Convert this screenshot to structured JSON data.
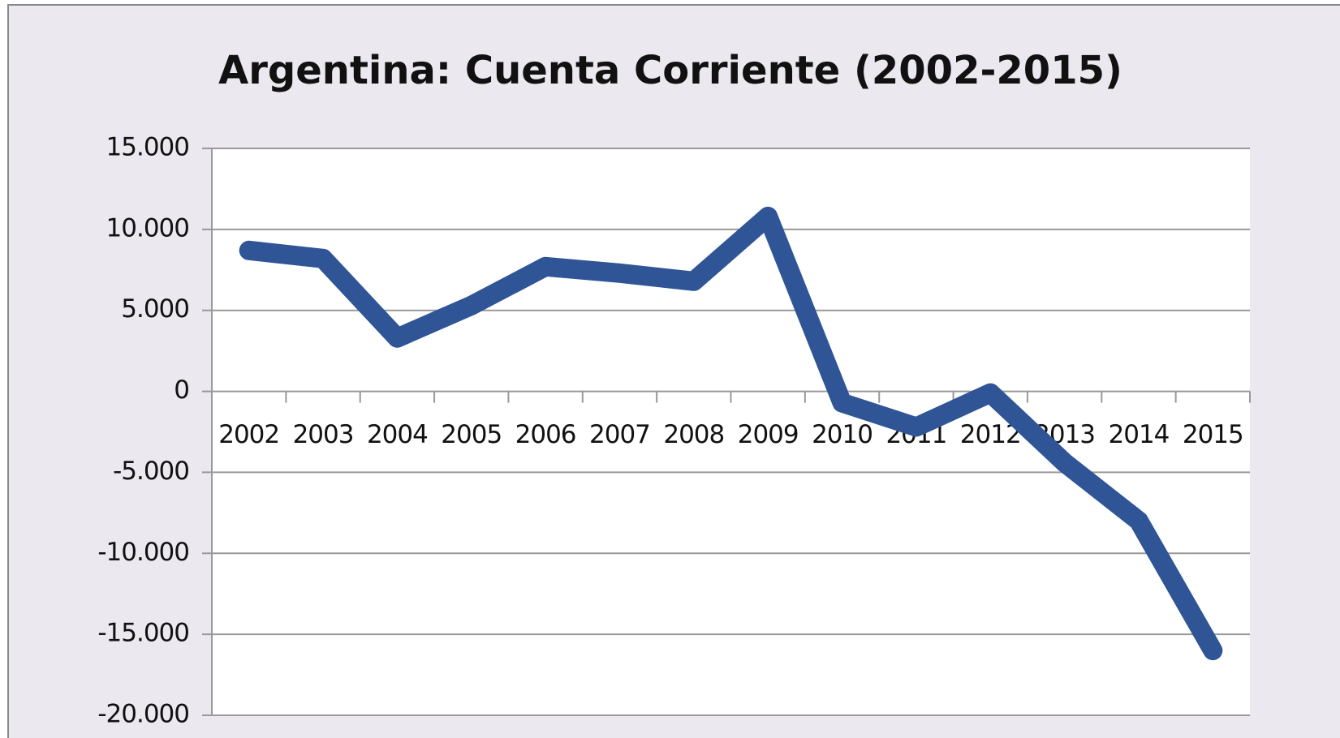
{
  "chart_data": {
    "type": "line",
    "title": "Argentina: Cuenta Corriente (2002-2015)",
    "categories": [
      "2002",
      "2003",
      "2004",
      "2005",
      "2006",
      "2007",
      "2008",
      "2009",
      "2010",
      "2011",
      "2012",
      "2013",
      "2014",
      "2015"
    ],
    "series": [
      {
        "name": "Cuenta Corriente",
        "color": "#2f5597",
        "values": [
          8700,
          8200,
          3300,
          5300,
          7700,
          7300,
          6800,
          10800,
          -700,
          -2200,
          -100,
          -4400,
          -8000,
          -16000
        ]
      }
    ],
    "ylim": [
      -20000,
      15000
    ],
    "yticks": [
      {
        "value": -20000,
        "label": "-20.000"
      },
      {
        "value": -15000,
        "label": "-15.000"
      },
      {
        "value": -10000,
        "label": "-10.000"
      },
      {
        "value": -5000,
        "label": "-5.000"
      },
      0,
      {
        "value": 5000,
        "label": "5.000"
      },
      {
        "value": 10000,
        "label": "10.000"
      },
      {
        "value": 15000,
        "label": "15.000"
      }
    ],
    "grid": true
  }
}
